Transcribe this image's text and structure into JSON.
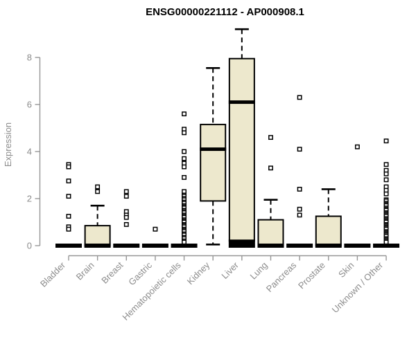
{
  "title": "ENSG00000221112 - AP000908.1",
  "colors": {
    "box_fill": "#EDE8CD",
    "box_stroke": "#000000",
    "axis_line": "#969696",
    "tick_label": "#8c8c8c",
    "title_color": "#000000",
    "background": "#ffffff",
    "outlier_fill": "#ffffff"
  },
  "chart_data": {
    "type": "boxplot",
    "title": "ENSG00000221112 - AP000908.1",
    "xlabel": "",
    "ylabel": "Expression",
    "ylim": [
      0,
      9.3
    ],
    "yticks": [
      0,
      2,
      4,
      6,
      8
    ],
    "grid": "off",
    "legend": "none",
    "categories": [
      "Bladder",
      "Brain",
      "Breast",
      "Gastric",
      "Hematopoietic cells",
      "Kidney",
      "Liver",
      "Lung",
      "Pancreas",
      "Prostate",
      "Skin",
      "Unknown / Other"
    ],
    "series": [
      {
        "name": "Bladder",
        "q1": 0,
        "median": 0,
        "q3": 0,
        "whisker_low": 0,
        "whisker_high": 0,
        "outliers": [
          3.45,
          3.35,
          2.75,
          2.1,
          1.25,
          0.8,
          0.7
        ]
      },
      {
        "name": "Brain",
        "q1": 0,
        "median": 0,
        "q3": 0.85,
        "whisker_low": 0,
        "whisker_high": 1.7,
        "outliers": [
          2.5,
          2.3
        ]
      },
      {
        "name": "Breast",
        "q1": 0,
        "median": 0,
        "q3": 0,
        "whisker_low": 0,
        "whisker_high": 0,
        "outliers": [
          2.3,
          2.1,
          1.45,
          1.3,
          1.2,
          0.9
        ]
      },
      {
        "name": "Gastric",
        "q1": 0,
        "median": 0,
        "q3": 0,
        "whisker_low": 0,
        "whisker_high": 0,
        "outliers": [
          0.7
        ]
      },
      {
        "name": "Hematopoietic cells",
        "q1": 0,
        "median": 0,
        "q3": 0,
        "whisker_low": 0,
        "whisker_high": 0,
        "outliers": [
          5.6,
          4.95,
          4.8,
          4.0,
          3.7,
          3.5,
          3.35,
          2.9,
          2.3,
          2.15,
          2.1,
          2.0,
          1.95,
          1.85,
          1.8,
          1.7,
          1.65,
          1.6,
          1.5,
          1.45,
          1.4,
          1.3,
          1.25,
          1.2,
          1.1,
          1.05,
          1.0,
          0.9,
          0.85,
          0.8,
          0.7,
          0.65,
          0.6,
          0.5,
          0.45,
          0.35,
          0.3,
          0.2,
          0.15
        ]
      },
      {
        "name": "Kidney",
        "q1": 1.9,
        "median": 4.1,
        "q3": 5.15,
        "whisker_low": 0.05,
        "whisker_high": 7.55,
        "outliers": []
      },
      {
        "name": "Liver",
        "q1": 0.2,
        "median": 6.1,
        "q3": 7.95,
        "whisker_low": 0,
        "whisker_high": 9.2,
        "outliers": []
      },
      {
        "name": "Lung",
        "q1": 0,
        "median": 0,
        "q3": 1.1,
        "whisker_low": 0,
        "whisker_high": 1.95,
        "outliers": [
          4.6,
          3.3
        ]
      },
      {
        "name": "Pancreas",
        "q1": 0,
        "median": 0,
        "q3": 0,
        "whisker_low": 0,
        "whisker_high": 0,
        "outliers": [
          6.3,
          4.1,
          2.4,
          1.55,
          1.3
        ]
      },
      {
        "name": "Prostate",
        "q1": 0,
        "median": 0,
        "q3": 1.25,
        "whisker_low": 0,
        "whisker_high": 2.4,
        "outliers": []
      },
      {
        "name": "Skin",
        "q1": 0,
        "median": 0,
        "q3": 0,
        "whisker_low": 0,
        "whisker_high": 0,
        "outliers": [
          4.2
        ]
      },
      {
        "name": "Unknown / Other",
        "q1": 0,
        "median": 0,
        "q3": 0,
        "whisker_low": 0,
        "whisker_high": 0,
        "outliers": [
          4.45,
          3.45,
          3.2,
          3.05,
          2.8,
          2.5,
          2.35,
          2.2,
          1.95,
          1.9,
          1.8,
          1.75,
          1.7,
          1.6,
          1.55,
          1.5,
          1.4,
          1.35,
          1.3,
          1.25,
          1.15,
          1.1,
          1.05,
          1.0,
          0.9,
          0.85,
          0.8,
          0.75,
          0.7,
          0.6,
          0.55,
          0.5,
          0.45,
          0.4,
          0.3,
          0.25,
          0.2,
          0.15
        ]
      }
    ]
  }
}
